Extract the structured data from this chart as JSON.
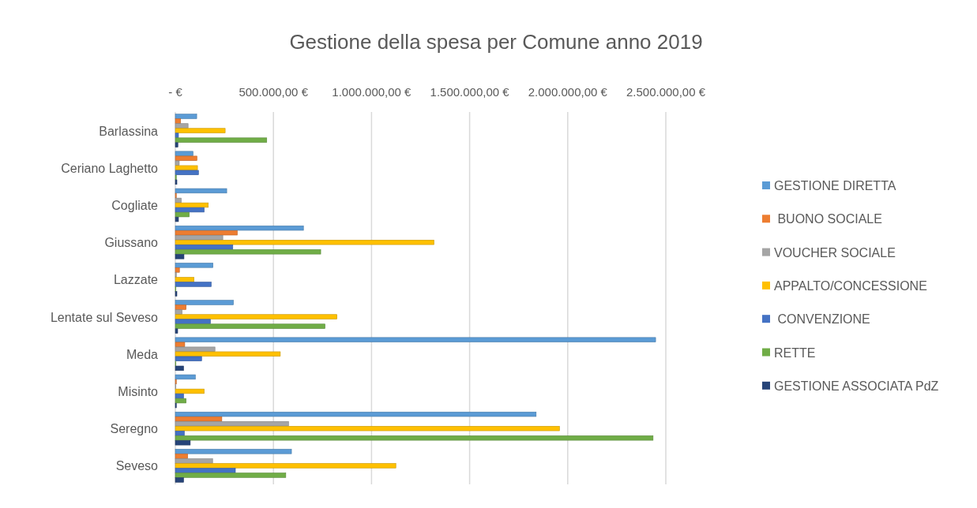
{
  "chart_data": {
    "type": "bar",
    "orientation": "horizontal",
    "title": "Gestione della spesa per Comune anno 2019",
    "categories": [
      "Barlassina",
      "Ceriano Laghetto",
      "Cogliate",
      "Giussano",
      "Lazzate",
      "Lentate sul Seveso",
      "Meda",
      "Misinto",
      "Seregno",
      "Seveso"
    ],
    "series": [
      {
        "name": "GESTIONE DIRETTA",
        "color": "#5b9bd5",
        "values": [
          109000,
          90000,
          262000,
          653000,
          192000,
          296000,
          2448000,
          102000,
          1839000,
          592000
        ]
      },
      {
        "name": " BUONO SOCIALE",
        "color": "#ed7d31",
        "values": [
          27000,
          110000,
          5000,
          316000,
          21000,
          55000,
          48000,
          5000,
          237000,
          63000
        ]
      },
      {
        "name": "VOUCHER SOCIALE",
        "color": "#a5a5a5",
        "values": [
          65000,
          20000,
          30000,
          242000,
          5000,
          34000,
          202000,
          3000,
          577000,
          190000
        ]
      },
      {
        "name": "APPALTO/CONCESSIONE",
        "color": "#ffc000",
        "values": [
          254000,
          113000,
          168000,
          1318000,
          95000,
          824000,
          535000,
          147000,
          1958000,
          1124000
        ]
      },
      {
        "name": " CONVENZIONE",
        "color": "#4472c4",
        "values": [
          16000,
          118000,
          147000,
          293000,
          183000,
          179000,
          134000,
          42000,
          46000,
          306000
        ]
      },
      {
        "name": "RETTE",
        "color": "#70ad47",
        "values": [
          466000,
          5000,
          71000,
          741000,
          3000,
          763000,
          3000,
          55000,
          2435000,
          563000
        ]
      },
      {
        "name": "GESTIONE ASSOCIATA PdZ",
        "color": "#264478",
        "values": [
          13000,
          8000,
          16000,
          44000,
          8000,
          12000,
          42000,
          5000,
          76000,
          42000
        ]
      }
    ],
    "xlim": [
      0,
      2500000
    ],
    "xticks": [
      {
        "value": 0,
        "label": "-   €"
      },
      {
        "value": 500000,
        "label": "500.000,00 €"
      },
      {
        "value": 1000000,
        "label": "1.000.000,00 €"
      },
      {
        "value": 1500000,
        "label": "1.500.000,00 €"
      },
      {
        "value": 2000000,
        "label": "2.000.000,00 €"
      },
      {
        "value": 2500000,
        "label": "2.500.000,00 €"
      }
    ],
    "grid": "x",
    "legend": "right"
  }
}
